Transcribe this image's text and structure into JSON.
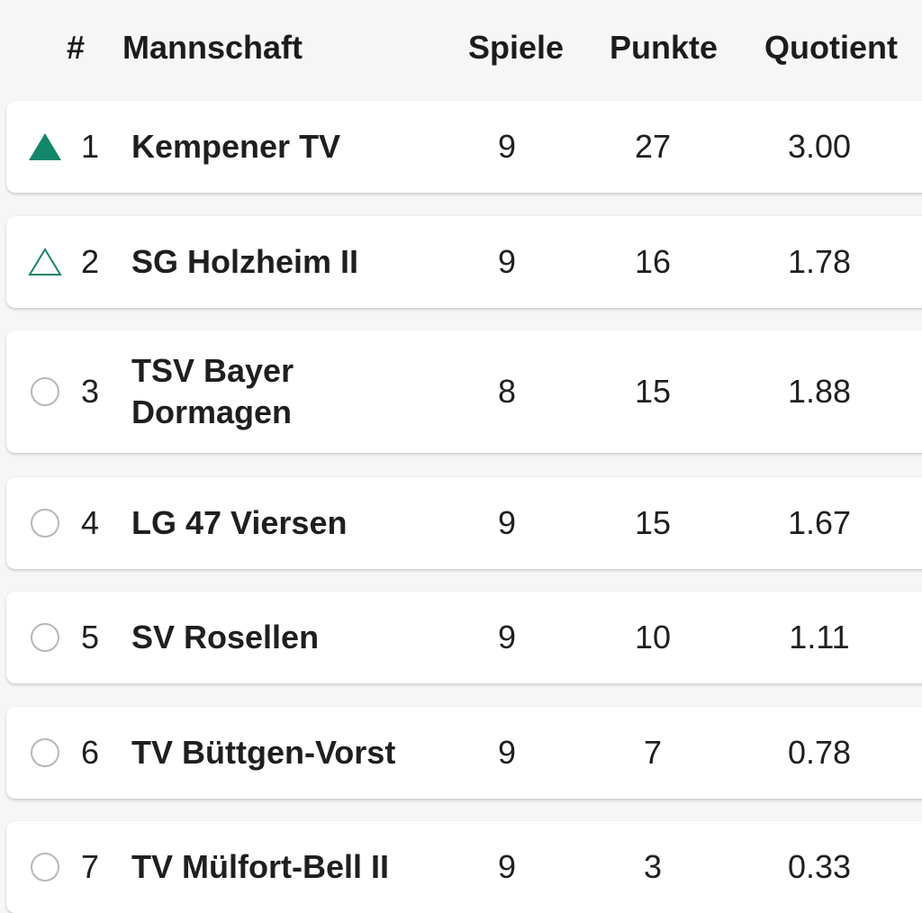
{
  "header": {
    "rank": "#",
    "team": "Mannschaft",
    "games": "Spiele",
    "points": "Punkte",
    "quotient": "Quotient"
  },
  "rows": [
    {
      "rank": "1",
      "team": "Kempener TV",
      "games": "9",
      "points": "27",
      "quotient": "3.00",
      "icon": "triangle-filled-icon"
    },
    {
      "rank": "2",
      "team": "SG Holzheim II",
      "games": "9",
      "points": "16",
      "quotient": "1.78",
      "icon": "triangle-outline-icon"
    },
    {
      "rank": "3",
      "team": "TSV Bayer Dormagen",
      "games": "8",
      "points": "15",
      "quotient": "1.88",
      "icon": "circle-icon"
    },
    {
      "rank": "4",
      "team": "LG 47 Viersen",
      "games": "9",
      "points": "15",
      "quotient": "1.67",
      "icon": "circle-icon"
    },
    {
      "rank": "5",
      "team": "SV Rosellen",
      "games": "9",
      "points": "10",
      "quotient": "1.11",
      "icon": "circle-icon"
    },
    {
      "rank": "6",
      "team": "TV Büttgen-Vorst",
      "games": "9",
      "points": "7",
      "quotient": "0.78",
      "icon": "circle-icon"
    },
    {
      "rank": "7",
      "team": "TV Mülfort-Bell II",
      "games": "9",
      "points": "3",
      "quotient": "0.33",
      "icon": "circle-icon"
    }
  ],
  "colors": {
    "promotion": "#11866a",
    "neutral": "#b7b7b7",
    "background": "#f6f6f6",
    "card": "#ffffff"
  }
}
